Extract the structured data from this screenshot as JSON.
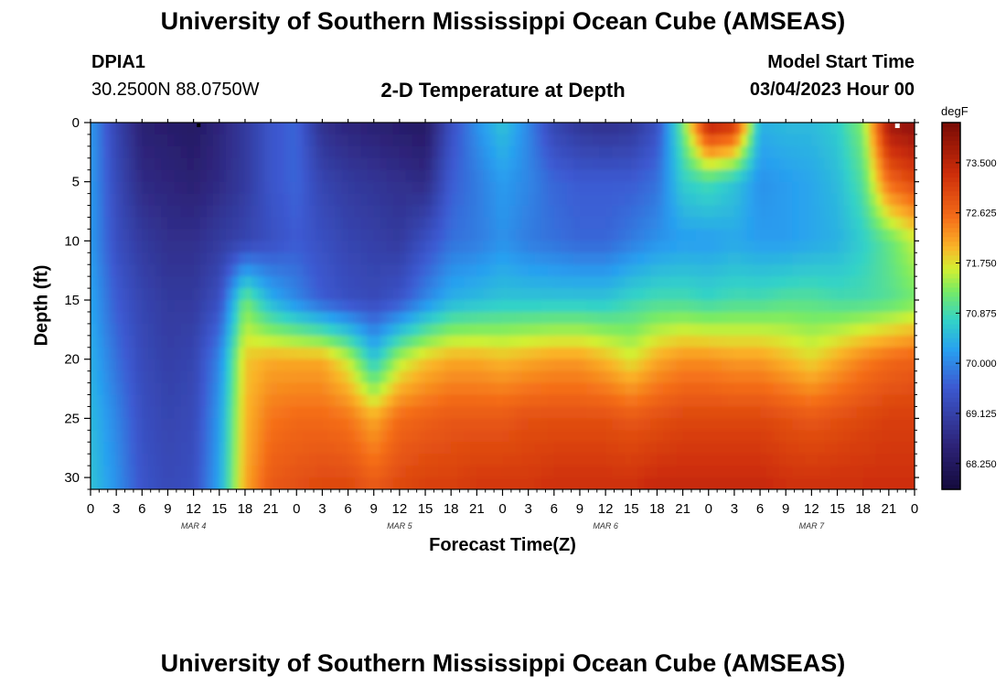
{
  "header": {
    "title": "University of Southern Mississippi Ocean Cube (AMSEAS)",
    "station_id": "DPIA1",
    "station_coords": "30.2500N  88.0750W",
    "plot_title": "2-D Temperature at Depth",
    "model_start_label": "Model Start Time",
    "model_start_value": "03/04/2023 Hour 00"
  },
  "footer": {
    "title": "University of Southern Mississippi Ocean Cube (AMSEAS)"
  },
  "chart_data": {
    "type": "heatmap",
    "title": "2-D Temperature at Depth",
    "xlabel": "Forecast Time(Z)",
    "ylabel": "Depth (ft)",
    "units": "degF",
    "x_range_hours": [
      0,
      96
    ],
    "y_range_ft": [
      0,
      31
    ],
    "y_inverted": true,
    "x_ticks": [
      "0",
      "3",
      "6",
      "9",
      "12",
      "15",
      "18",
      "21",
      "0",
      "3",
      "6",
      "9",
      "12",
      "15",
      "18",
      "21",
      "0",
      "3",
      "6",
      "9",
      "12",
      "15",
      "18",
      "21",
      "0",
      "3",
      "6",
      "9",
      "12",
      "15",
      "18",
      "21",
      "0"
    ],
    "day_labels": [
      {
        "hour": 12,
        "label": "MAR 4"
      },
      {
        "hour": 36,
        "label": "MAR 5"
      },
      {
        "hour": 60,
        "label": "MAR 6"
      },
      {
        "hour": 84,
        "label": "MAR 7"
      }
    ],
    "y_ticks": [
      0,
      5,
      10,
      15,
      20,
      25,
      30
    ],
    "colorbar": {
      "min": 67.8,
      "max": 74.2,
      "ticks": [
        "73.500",
        "72.625",
        "71.750",
        "70.875",
        "70.000",
        "69.125",
        "68.250"
      ]
    },
    "grid_hours": [
      0,
      3,
      6,
      9,
      12,
      15,
      18,
      21,
      24,
      27,
      30,
      33,
      36,
      39,
      42,
      45,
      48,
      51,
      54,
      57,
      60,
      63,
      66,
      69,
      72,
      75,
      78,
      81,
      84,
      87,
      90,
      93,
      96
    ],
    "grid_depths_ft": [
      0,
      5,
      10,
      15,
      20,
      25,
      31
    ],
    "temperature": [
      [
        70.2,
        69.2,
        68.5,
        68.4,
        68.3,
        68.6,
        69.0,
        69.5,
        69.7,
        68.8,
        68.6,
        68.5,
        68.4,
        68.3,
        69.4,
        70.1,
        70.6,
        70.0,
        69.2,
        68.9,
        68.8,
        68.9,
        69.4,
        71.2,
        73.6,
        73.3,
        70.4,
        70.5,
        70.5,
        70.7,
        71.3,
        73.8,
        74.0
      ],
      [
        70.2,
        69.3,
        68.7,
        68.6,
        68.5,
        68.7,
        69.0,
        69.5,
        69.7,
        69.2,
        69.0,
        68.9,
        68.8,
        68.7,
        69.6,
        69.9,
        70.2,
        70.0,
        69.7,
        69.6,
        69.6,
        69.6,
        69.8,
        70.7,
        70.9,
        70.6,
        70.1,
        70.2,
        70.3,
        70.5,
        71.0,
        72.6,
        73.0
      ],
      [
        70.2,
        69.4,
        69.0,
        68.8,
        68.8,
        69.0,
        69.2,
        69.4,
        69.6,
        69.4,
        69.2,
        69.1,
        69.0,
        69.4,
        69.8,
        69.9,
        70.1,
        69.9,
        69.8,
        69.7,
        69.7,
        69.9,
        70.1,
        70.2,
        70.2,
        70.3,
        70.2,
        70.2,
        70.3,
        70.4,
        70.7,
        71.1,
        71.6
      ],
      [
        70.3,
        69.6,
        69.2,
        69.0,
        69.0,
        69.4,
        71.2,
        70.4,
        70.0,
        69.6,
        69.4,
        69.3,
        69.5,
        70.0,
        70.4,
        70.5,
        70.6,
        70.6,
        70.6,
        70.6,
        70.6,
        70.8,
        70.9,
        70.9,
        70.8,
        70.9,
        70.9,
        71.0,
        71.0,
        70.9,
        70.9,
        71.0,
        71.2
      ],
      [
        70.4,
        69.8,
        69.3,
        69.1,
        69.2,
        70.0,
        71.9,
        72.1,
        72.1,
        72.1,
        71.6,
        70.6,
        71.5,
        71.9,
        72.1,
        72.1,
        72.0,
        72.1,
        72.2,
        72.2,
        72.0,
        71.7,
        72.1,
        72.3,
        72.3,
        72.2,
        72.2,
        72.0,
        71.8,
        72.1,
        72.4,
        72.6,
        72.7
      ],
      [
        70.5,
        70.0,
        69.4,
        69.2,
        69.3,
        70.2,
        72.0,
        72.5,
        72.6,
        72.6,
        72.5,
        72.1,
        72.6,
        72.7,
        72.8,
        72.8,
        72.8,
        72.9,
        72.9,
        72.9,
        72.9,
        72.8,
        72.9,
        73.0,
        73.0,
        73.0,
        73.0,
        72.9,
        72.8,
        72.9,
        73.0,
        73.1,
        73.1
      ],
      [
        70.6,
        70.1,
        69.5,
        69.3,
        69.4,
        70.3,
        72.1,
        72.8,
        72.9,
        73.0,
        73.0,
        72.8,
        73.0,
        73.1,
        73.1,
        73.2,
        73.2,
        73.2,
        73.3,
        73.3,
        73.3,
        73.3,
        73.4,
        73.4,
        73.4,
        73.4,
        73.4,
        73.3,
        73.3,
        73.3,
        73.3,
        73.3,
        73.3
      ]
    ]
  }
}
